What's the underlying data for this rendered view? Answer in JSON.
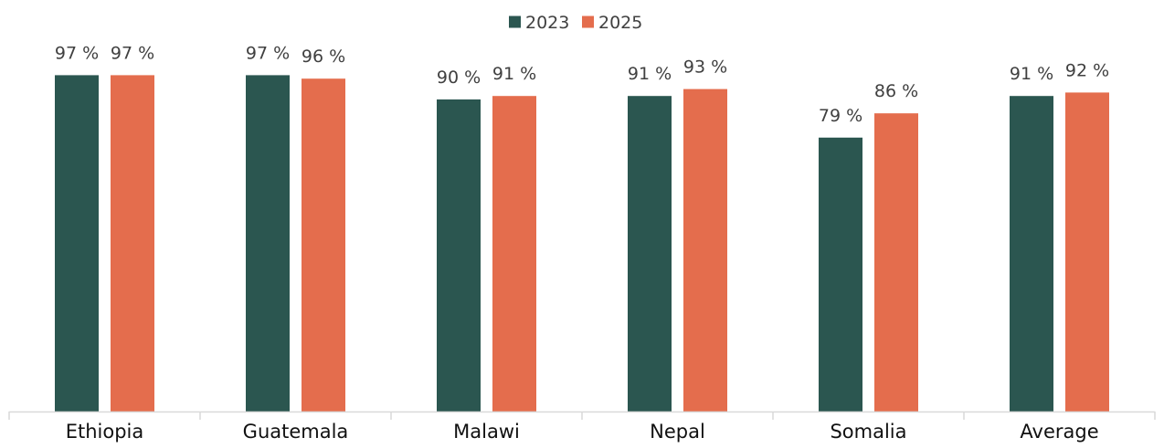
{
  "chart_data": {
    "type": "bar",
    "title": "",
    "xlabel": "",
    "ylabel": "",
    "ylim": [
      0,
      100
    ],
    "grid": false,
    "legend_position": "top-center",
    "categories": [
      "Ethiopia",
      "Guatemala",
      "Malawi",
      "Nepal",
      "Somalia",
      "Average"
    ],
    "series": [
      {
        "name": "2023",
        "color": "#2b5650",
        "values": [
          97,
          97,
          90,
          91,
          79,
          91
        ],
        "labels": [
          "97 %",
          "97 %",
          "90 %",
          "91 %",
          "79 %",
          "91 %"
        ]
      },
      {
        "name": "2025",
        "color": "#e46d4d",
        "values": [
          97,
          96,
          91,
          93,
          86,
          92
        ],
        "labels": [
          "97 %",
          "96 %",
          "91 %",
          "93 %",
          "86 %",
          "92 %"
        ]
      }
    ]
  }
}
